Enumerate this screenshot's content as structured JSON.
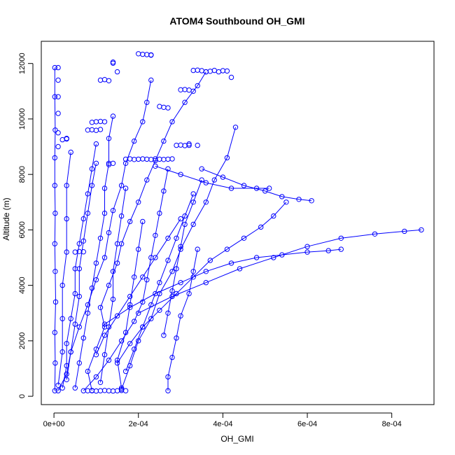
{
  "chart_data": {
    "type": "scatter",
    "title": "ATOM4 Southbound OH_GMI",
    "xlabel": "OH_GMI",
    "ylabel": "Altitude (m)",
    "xlim": [
      -3e-05,
      0.0009
    ],
    "ylim": [
      -300,
      12800
    ],
    "x_ticks": [
      0,
      0.0002,
      0.0004,
      0.0006,
      0.0008
    ],
    "x_tick_labels": [
      "0e+00",
      "2e-04",
      "4e-04",
      "6e-04",
      "8e-04"
    ],
    "y_ticks": [
      0,
      2000,
      4000,
      6000,
      8000,
      10000,
      12000
    ],
    "y_tick_labels": [
      "0",
      "2000",
      "4000",
      "6000",
      "8000",
      "10000",
      "12000"
    ],
    "grid": false,
    "marker": "open-circle",
    "line_style": "solid",
    "series_color": "#0000ff",
    "series": [
      {
        "x": [
          2e-06,
          3e-06,
          2e-06,
          4e-06,
          3e-06,
          2e-06,
          3e-06,
          2e-06,
          2e-06,
          3e-06,
          2e-06,
          2e-06
        ],
        "y": [
          200,
          1200,
          2300,
          3400,
          4500,
          5500,
          6600,
          7600,
          8600,
          9600,
          10800,
          11850
        ]
      },
      {
        "x": [
          1e-05,
          3e-05,
          4e-05,
          6e-05,
          8e-05,
          0.0001,
          0.00012,
          0.00013,
          0.00014,
          0.00016,
          0.00017,
          0.00019,
          0.00021,
          0.00022,
          0.00023
        ],
        "y": [
          200,
          800,
          1600,
          2500,
          3300,
          4200,
          5000,
          5900,
          6700,
          7600,
          8400,
          9200,
          9900,
          10600,
          11400
        ]
      },
      {
        "x": [
          9e-05,
          8e-05,
          0.0001,
          0.00012,
          0.00011,
          0.00013,
          0.00015,
          0.00016,
          0.00018,
          0.0002,
          0.00022,
          0.00024,
          0.00026,
          0.00028,
          0.00031,
          0.00034,
          0.00036
        ],
        "y": [
          200,
          900,
          1700,
          2500,
          3200,
          4000,
          4800,
          5500,
          6300,
          7000,
          7800,
          8500,
          9200,
          9900,
          10600,
          11200,
          11700
        ]
      },
      {
        "x": [
          0.00016,
          0.00018,
          0.0002,
          0.00023,
          0.00025,
          0.00028,
          0.0003,
          0.00033,
          0.00036,
          0.00038,
          0.00041,
          0.00043
        ],
        "y": [
          250,
          1100,
          2000,
          2800,
          3700,
          4500,
          5300,
          6200,
          7000,
          7800,
          8600,
          9700
        ]
      },
      {
        "x": [
          0.00015,
          0.00018,
          0.00021,
          0.00025,
          0.00029,
          0.00033,
          0.00037,
          0.00041,
          0.00045,
          0.00049,
          0.00052,
          0.00055
        ],
        "y": [
          1200,
          1900,
          2500,
          3100,
          3700,
          4300,
          4900,
          5300,
          5700,
          6100,
          6500,
          7000
        ]
      },
      {
        "x": [
          0.00012,
          0.00018,
          0.00024,
          0.0003,
          0.00036,
          0.00042,
          0.00048,
          0.00054,
          0.0006,
          0.00065,
          0.00068
        ],
        "y": [
          2600,
          3200,
          3700,
          4100,
          4500,
          4800,
          5000,
          5100,
          5200,
          5250,
          5300
        ]
      },
      {
        "x": [
          0.0002,
          0.00028,
          0.00036,
          0.00044,
          0.00052,
          0.0006,
          0.00068,
          0.00076,
          0.00083,
          0.00087
        ],
        "y": [
          3000,
          3600,
          4100,
          4600,
          5000,
          5400,
          5700,
          5850,
          5950,
          6000
        ]
      },
      {
        "x": [
          0.00035,
          0.0004,
          0.00045,
          0.0005,
          0.00054,
          0.00058,
          0.00061
        ],
        "y": [
          8200,
          7900,
          7600,
          7400,
          7200,
          7100,
          7050
        ]
      },
      {
        "x": [
          0.00024,
          0.0003,
          0.00036,
          0.00042,
          0.00048,
          0.00051
        ],
        "y": [
          8300,
          8000,
          7700,
          7500,
          7500,
          7500
        ]
      },
      {
        "x": [
          7e-05,
          0.0001,
          0.00013,
          0.00016,
          0.00019,
          0.00021,
          0.00022,
          0.00023,
          0.00024,
          0.00025,
          0.00026,
          0.00027
        ],
        "y": [
          200,
          700,
          1300,
          2000,
          2700,
          3400,
          4200,
          5000,
          5800,
          6600,
          7400,
          8200
        ]
      },
      {
        "x": [
          5e-05,
          6e-05,
          7e-05,
          8e-05,
          9e-05,
          0.0001,
          0.00011,
          0.00012,
          0.00012,
          0.00013,
          0.00013,
          0.00014
        ],
        "y": [
          300,
          1200,
          2100,
          3000,
          3900,
          4800,
          5700,
          6600,
          7500,
          8400,
          9300,
          10100
        ]
      },
      {
        "x": [
          2e-05,
          3e-05,
          3e-05,
          4e-05,
          5e-05,
          5e-05,
          6e-05,
          7e-05,
          8e-05,
          9e-05,
          0.0001
        ],
        "y": [
          300,
          1100,
          1900,
          2800,
          3700,
          4600,
          5500,
          6400,
          7300,
          8200,
          9100
        ]
      },
      {
        "x": [
          0.00026,
          0.00027,
          0.00028,
          0.00029,
          0.0003,
          0.00031,
          0.00033,
          0.00035
        ],
        "y": [
          2200,
          3000,
          3800,
          4600,
          5400,
          6200,
          7000,
          7800
        ]
      },
      {
        "x": [
          0.00016,
          0.00015,
          0.00017,
          0.00018,
          0.00019,
          0.0002,
          0.00021
        ],
        "y": [
          300,
          1300,
          2300,
          3300,
          4300,
          5300,
          6300
        ]
      },
      {
        "x": [
          0.00011,
          0.00012,
          0.00013,
          0.00014,
          0.00014,
          0.00015,
          0.00016,
          0.00017
        ],
        "y": [
          500,
          1500,
          2500,
          3500,
          4500,
          5500,
          6500,
          7500
        ]
      },
      {
        "x": [
          3e-05,
          4e-05,
          5e-05,
          6e-05,
          6e-05,
          7e-05,
          8e-05,
          9e-05,
          0.0001
        ],
        "y": [
          600,
          1600,
          2600,
          3600,
          4600,
          5600,
          6600,
          7600,
          8400
        ]
      },
      {
        "x": [
          1e-05,
          2e-05,
          2e-05,
          2e-05,
          3e-05,
          3e-05,
          3e-05,
          4e-05
        ],
        "y": [
          400,
          1600,
          2800,
          4000,
          5200,
          6400,
          7600,
          8800
        ]
      },
      {
        "x": [
          0.00017,
          0.00019,
          0.00021,
          0.00023,
          0.00025,
          0.00027,
          0.00029,
          0.00031,
          0.00033
        ],
        "y": [
          900,
          1700,
          2500,
          3300,
          4100,
          4900,
          5700,
          6500,
          7300
        ]
      },
      {
        "x": [
          0.0001,
          0.00012,
          0.00015,
          0.00018,
          0.00021,
          0.00024,
          0.00027,
          0.0003
        ],
        "y": [
          1500,
          2200,
          2900,
          3600,
          4300,
          5000,
          5700,
          6400
        ]
      },
      {
        "x": [
          0.00027,
          0.00027,
          0.00028,
          0.00029,
          0.0003,
          0.00032,
          0.00033,
          0.00034
        ],
        "y": [
          200,
          700,
          1400,
          2100,
          2900,
          3700,
          4500,
          5300
        ]
      }
    ],
    "points": {
      "x": [
        0.0002,
        0.00021,
        0.00022,
        0.00023,
        0.00023,
        0.00033,
        0.00034,
        0.00035,
        0.00036,
        0.00037,
        0.00038,
        0.00039,
        0.0004,
        0.00041,
        0.00042,
        0.0003,
        0.00031,
        0.00032,
        0.00033,
        0.00014,
        0.00014,
        0.00015,
        0.00012,
        0.00013,
        0.00011,
        9e-05,
        0.0001,
        0.00011,
        0.00012,
        8e-05,
        9e-05,
        0.0001,
        0.00011,
        1e-05,
        1e-05,
        1e-05,
        1e-05,
        1e-05,
        1e-05,
        2e-05,
        3e-05,
        3e-05,
        5e-05,
        6e-05,
        7e-05,
        0.00013,
        0.00014,
        0.00017,
        0.00018,
        0.00019,
        0.0002,
        0.00021,
        0.00022,
        0.00023,
        0.00024,
        0.00025,
        0.00026,
        0.00027,
        0.00028,
        0.00029,
        0.0003,
        0.00031,
        0.00032,
        0.00025,
        0.00026,
        0.00027,
        8e-05,
        9e-05,
        0.0001,
        0.00011,
        0.00012,
        0.00013,
        0.00014,
        0.00015,
        0.00016,
        0.00017,
        0.00032,
        0.00034
      ],
      "y": [
        12350,
        12330,
        12320,
        12300,
        12310,
        11750,
        11760,
        11740,
        11700,
        11720,
        11750,
        11700,
        11740,
        11730,
        11500,
        11050,
        11060,
        11040,
        11000,
        12050,
        12010,
        11700,
        11420,
        11380,
        11400,
        9880,
        9900,
        9910,
        9900,
        9600,
        9610,
        9590,
        9620,
        11850,
        11400,
        10800,
        10200,
        9500,
        9000,
        9250,
        9300,
        9280,
        5200,
        5220,
        5210,
        8350,
        8400,
        8550,
        8560,
        8540,
        8550,
        8560,
        8550,
        8540,
        8560,
        8550,
        8540,
        8550,
        8560,
        9050,
        9060,
        9040,
        9050,
        10450,
        10420,
        10400,
        200,
        210,
        190,
        200,
        210,
        200,
        190,
        200,
        210,
        200,
        9100,
        9050
      ]
    }
  }
}
